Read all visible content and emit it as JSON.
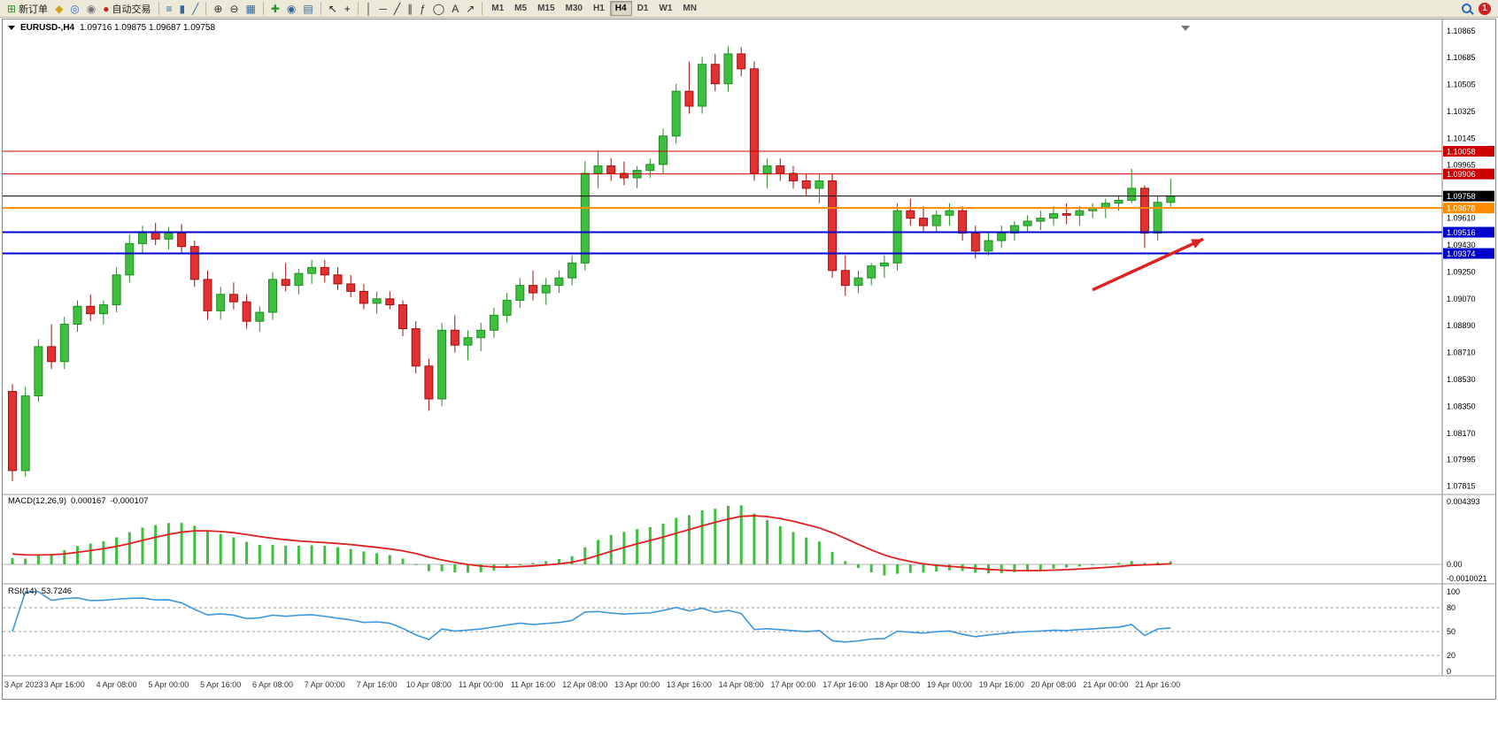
{
  "toolbar": {
    "notification_count": "1",
    "timeframes": [
      "M1",
      "M5",
      "M15",
      "M30",
      "H1",
      "H4",
      "D1",
      "W1",
      "MN"
    ],
    "active_timeframe": "H4",
    "groups": [
      {
        "name": "trade",
        "items": [
          {
            "icon": "new-order-icon",
            "glyph": "⊞",
            "color": "#2a8f2a",
            "label": "新订单"
          },
          {
            "icon": "market-watch-icon",
            "glyph": "◆",
            "color": "#d4a017"
          },
          {
            "icon": "navigator-icon",
            "glyph": "◎",
            "color": "#3366cc"
          },
          {
            "icon": "script-icon",
            "glyph": "◉",
            "color": "#777777"
          },
          {
            "icon": "autotrade-icon",
            "glyph": "●",
            "color": "#cc2222",
            "label": "自动交易"
          }
        ]
      },
      {
        "name": "chart-type",
        "items": [
          {
            "icon": "bar-chart-icon",
            "glyph": "≡",
            "color": "#336699"
          },
          {
            "icon": "candlestick-chart-icon",
            "glyph": "▮",
            "color": "#336699"
          },
          {
            "icon": "line-chart-icon",
            "glyph": "╱",
            "color": "#336699"
          }
        ]
      },
      {
        "name": "zoom",
        "items": [
          {
            "icon": "zoom-in-icon",
            "glyph": "⊕",
            "color": "#333333"
          },
          {
            "icon": "zoom-out-icon",
            "glyph": "⊖",
            "color": "#333333"
          },
          {
            "icon": "tile-windows-icon",
            "glyph": "▦",
            "color": "#336699"
          }
        ]
      },
      {
        "name": "indicators",
        "items": [
          {
            "icon": "indicators-icon",
            "glyph": "✚",
            "color": "#2a8f2a"
          },
          {
            "icon": "period-icon",
            "glyph": "◉",
            "color": "#336699"
          },
          {
            "icon": "template-icon",
            "glyph": "▤",
            "color": "#336699"
          }
        ]
      },
      {
        "name": "cursor",
        "items": [
          {
            "icon": "cursor-icon",
            "glyph": "↖",
            "color": "#222222"
          },
          {
            "icon": "crosshair-icon",
            "glyph": "+",
            "color": "#222222"
          }
        ]
      },
      {
        "name": "objects",
        "items": [
          {
            "icon": "vertical-line-icon",
            "glyph": "│",
            "color": "#333333"
          },
          {
            "icon": "horizontal-line-icon",
            "glyph": "─",
            "color": "#333333"
          },
          {
            "icon": "trendline-icon",
            "glyph": "╱",
            "color": "#333333"
          },
          {
            "icon": "channel-icon",
            "glyph": "∥",
            "color": "#333333"
          },
          {
            "icon": "fibonacci-icon",
            "glyph": "ƒ",
            "color": "#333333"
          },
          {
            "icon": "shapes-icon",
            "glyph": "◯",
            "color": "#333333"
          },
          {
            "icon": "text-icon",
            "glyph": "A",
            "color": "#333333"
          },
          {
            "icon": "arrows-icon",
            "glyph": "↗",
            "color": "#333333"
          }
        ]
      }
    ]
  },
  "chart_data": {
    "type": "candlestick",
    "symbol": "EURUSD",
    "period": "H4",
    "title": "EURUSD-,H4",
    "ohlc_text": "1.09716 1.09875 1.09687 1.09758",
    "colors": {
      "bull": "#3fbf3f",
      "bull_border": "#1f8f1f",
      "bear": "#e33030",
      "bear_border": "#a01010",
      "macd_hist": "#3fbf3f",
      "macd_signal": "#e02020",
      "rsi_line": "#3a96dd"
    },
    "price_axis_labels": [
      "1.10865",
      "1.10685",
      "1.10505",
      "1.10325",
      "1.10145",
      "1.09965",
      "1.09610",
      "1.09430",
      "1.09250",
      "1.09070",
      "1.08890",
      "1.08710",
      "1.08530",
      "1.08350",
      "1.08170",
      "1.07995",
      "1.07815"
    ],
    "levels": [
      {
        "price": 1.10058,
        "label": "1.10058",
        "color": "#cc0000",
        "width": 1
      },
      {
        "price": 1.09906,
        "label": "1.09906",
        "color": "#cc0000",
        "width": 1
      },
      {
        "price": 1.09758,
        "label": "1.09758",
        "color": "#000000",
        "width": 1
      },
      {
        "price": 1.09678,
        "label": "1.09678",
        "color": "#ff8c00",
        "width": 2
      },
      {
        "price": 1.09516,
        "label": "1.09516",
        "color": "#0000cc",
        "width": 2
      },
      {
        "price": 1.09374,
        "label": "1.09374",
        "color": "#0000cc",
        "width": 2
      }
    ],
    "arrow": {
      "from_bar": 83,
      "from_price": 1.0913,
      "to_bar": 91.5,
      "to_price": 1.0947,
      "color": "#dd2222"
    },
    "time_axis": [
      {
        "bar": 0,
        "label": "3 Apr 2023"
      },
      {
        "bar": 4,
        "label": "3 Apr 16:00"
      },
      {
        "bar": 8,
        "label": "4 Apr 08:00"
      },
      {
        "bar": 12,
        "label": "5 Apr 00:00"
      },
      {
        "bar": 16,
        "label": "5 Apr 16:00"
      },
      {
        "bar": 20,
        "label": "6 Apr 08:00"
      },
      {
        "bar": 24,
        "label": "7 Apr 00:00"
      },
      {
        "bar": 28,
        "label": "7 Apr 16:00"
      },
      {
        "bar": 32,
        "label": "10 Apr 08:00"
      },
      {
        "bar": 36,
        "label": "11 Apr 00:00"
      },
      {
        "bar": 40,
        "label": "11 Apr 16:00"
      },
      {
        "bar": 44,
        "label": "12 Apr 08:00"
      },
      {
        "bar": 48,
        "label": "13 Apr 00:00"
      },
      {
        "bar": 52,
        "label": "13 Apr 16:00"
      },
      {
        "bar": 56,
        "label": "14 Apr 08:00"
      },
      {
        "bar": 60,
        "label": "17 Apr 00:00"
      },
      {
        "bar": 64,
        "label": "17 Apr 16:00"
      },
      {
        "bar": 68,
        "label": "18 Apr 08:00"
      },
      {
        "bar": 72,
        "label": "19 Apr 00:00"
      },
      {
        "bar": 76,
        "label": "19 Apr 16:00"
      },
      {
        "bar": 80,
        "label": "20 Apr 08:00"
      },
      {
        "bar": 84,
        "label": "21 Apr 00:00"
      },
      {
        "bar": 88,
        "label": "21 Apr 16:00"
      }
    ],
    "candles": [
      [
        1.0845,
        1.085,
        1.0785,
        1.0792
      ],
      [
        1.0792,
        1.0848,
        1.0788,
        1.0842
      ],
      [
        1.0842,
        1.088,
        1.0838,
        1.0875
      ],
      [
        1.0875,
        1.089,
        1.086,
        1.0865
      ],
      [
        1.0865,
        1.0895,
        1.086,
        1.089
      ],
      [
        1.089,
        1.0906,
        1.0885,
        1.0902
      ],
      [
        1.0902,
        1.091,
        1.0892,
        1.0897
      ],
      [
        1.0897,
        1.0906,
        1.089,
        1.0903
      ],
      [
        1.0903,
        1.0928,
        1.0898,
        1.0923
      ],
      [
        1.0923,
        1.095,
        1.0918,
        1.0944
      ],
      [
        1.0944,
        1.0956,
        1.0938,
        1.0952
      ],
      [
        1.0952,
        1.0958,
        1.0943,
        1.0947
      ],
      [
        1.0947,
        1.0955,
        1.094,
        1.0951
      ],
      [
        1.0951,
        1.0957,
        1.0938,
        1.0942
      ],
      [
        1.0942,
        1.0946,
        1.0915,
        1.092
      ],
      [
        1.092,
        1.0926,
        1.0893,
        1.0899
      ],
      [
        1.0899,
        1.0915,
        1.0893,
        1.091
      ],
      [
        1.091,
        1.0918,
        1.09,
        1.0905
      ],
      [
        1.0905,
        1.091,
        1.0887,
        1.0892
      ],
      [
        1.0892,
        1.0902,
        1.0885,
        1.0898
      ],
      [
        1.0898,
        1.0925,
        1.0893,
        1.092
      ],
      [
        1.092,
        1.0931,
        1.0912,
        1.0916
      ],
      [
        1.0916,
        1.0927,
        1.091,
        1.0924
      ],
      [
        1.0924,
        1.0933,
        1.0917,
        1.0928
      ],
      [
        1.0928,
        1.0933,
        1.0918,
        1.0923
      ],
      [
        1.0923,
        1.0928,
        1.0913,
        1.0917
      ],
      [
        1.0917,
        1.0923,
        1.0908,
        1.0912
      ],
      [
        1.0912,
        1.0917,
        1.09,
        1.0904
      ],
      [
        1.0904,
        1.0912,
        1.0897,
        1.0907
      ],
      [
        1.0907,
        1.0912,
        1.09,
        1.0903
      ],
      [
        1.0903,
        1.0906,
        1.0882,
        1.0887
      ],
      [
        1.0887,
        1.0892,
        1.0857,
        1.0862
      ],
      [
        1.0862,
        1.0867,
        1.0832,
        1.084
      ],
      [
        1.084,
        1.0891,
        1.0835,
        1.0886
      ],
      [
        1.0886,
        1.0896,
        1.0871,
        1.0876
      ],
      [
        1.0876,
        1.0886,
        1.0866,
        1.0881
      ],
      [
        1.0881,
        1.0891,
        1.0872,
        1.0886
      ],
      [
        1.0886,
        1.0901,
        1.0881,
        1.0896
      ],
      [
        1.0896,
        1.0911,
        1.0891,
        1.0906
      ],
      [
        1.0906,
        1.0921,
        1.0901,
        1.0916
      ],
      [
        1.0916,
        1.0926,
        1.0906,
        1.0911
      ],
      [
        1.0911,
        1.0921,
        1.0903,
        1.0916
      ],
      [
        1.0916,
        1.0926,
        1.0911,
        1.0921
      ],
      [
        1.0921,
        1.0936,
        1.0916,
        1.0931
      ],
      [
        1.0931,
        1.0999,
        1.0926,
        1.0991
      ],
      [
        1.0991,
        1.1006,
        1.0981,
        1.0996
      ],
      [
        1.0996,
        1.1001,
        1.0986,
        1.0991
      ],
      [
        1.0991,
        1.0999,
        1.0983,
        1.0988
      ],
      [
        1.0988,
        1.0996,
        1.0981,
        1.0993
      ],
      [
        1.0993,
        1.1001,
        1.0988,
        1.0997
      ],
      [
        1.0997,
        1.1021,
        1.0991,
        1.1016
      ],
      [
        1.1016,
        1.1051,
        1.1011,
        1.1046
      ],
      [
        1.1046,
        1.1066,
        1.1031,
        1.1036
      ],
      [
        1.1036,
        1.1069,
        1.1031,
        1.1064
      ],
      [
        1.1064,
        1.1071,
        1.1046,
        1.1051
      ],
      [
        1.1051,
        1.1076,
        1.1046,
        1.1071
      ],
      [
        1.1071,
        1.10755,
        1.1056,
        1.1061
      ],
      [
        1.1061,
        1.1066,
        1.0986,
        1.0991
      ],
      [
        1.0991,
        1.1001,
        1.0981,
        1.0996
      ],
      [
        1.0996,
        1.1001,
        1.0986,
        1.0991
      ],
      [
        1.0991,
        1.0996,
        1.0981,
        1.0986
      ],
      [
        1.0986,
        1.0991,
        1.0976,
        1.0981
      ],
      [
        1.0981,
        1.0991,
        1.0971,
        1.0986
      ],
      [
        1.0986,
        1.0991,
        1.0921,
        1.0926
      ],
      [
        1.0926,
        1.0936,
        1.0909,
        1.0916
      ],
      [
        1.0916,
        1.0926,
        1.0911,
        1.0921
      ],
      [
        1.0921,
        1.0931,
        1.0916,
        1.0929
      ],
      [
        1.0929,
        1.0936,
        1.0921,
        1.0931
      ],
      [
        1.0931,
        1.0971,
        1.0926,
        1.0966
      ],
      [
        1.0966,
        1.0974,
        1.0956,
        1.0961
      ],
      [
        1.0961,
        1.0969,
        1.0951,
        1.0956
      ],
      [
        1.0956,
        1.0966,
        1.0951,
        1.0963
      ],
      [
        1.0963,
        1.0971,
        1.0956,
        1.0966
      ],
      [
        1.0966,
        1.0969,
        1.0946,
        1.0951
      ],
      [
        1.0951,
        1.0956,
        1.0934,
        1.0939
      ],
      [
        1.0939,
        1.0951,
        1.0936,
        1.0946
      ],
      [
        1.0946,
        1.0956,
        1.0941,
        1.0951
      ],
      [
        1.0951,
        1.0959,
        1.0946,
        1.0956
      ],
      [
        1.0956,
        1.0963,
        1.0951,
        1.0959
      ],
      [
        1.0959,
        1.0966,
        1.0953,
        1.0961
      ],
      [
        1.0961,
        1.0969,
        1.0956,
        1.0964
      ],
      [
        1.0964,
        1.0971,
        1.0957,
        1.0963
      ],
      [
        1.0963,
        1.0969,
        1.0956,
        1.0966
      ],
      [
        1.0966,
        1.0971,
        1.0961,
        1.0968
      ],
      [
        1.0968,
        1.0974,
        1.0961,
        1.0971
      ],
      [
        1.0971,
        1.0976,
        1.0966,
        1.0973
      ],
      [
        1.0973,
        1.0994,
        1.0971,
        1.0981
      ],
      [
        1.0981,
        1.0983,
        1.0941,
        1.0951
      ],
      [
        1.0951,
        1.0976,
        1.0946,
        1.09716
      ],
      [
        1.09716,
        1.09875,
        1.09687,
        1.09758
      ]
    ],
    "macd": {
      "label": "MACD(12,26,9)",
      "value_macd": "0.000167",
      "value_signal": "-0.000107",
      "params": {
        "fast": 12,
        "slow": 26,
        "signal": 9
      },
      "axis_labels": [
        {
          "value": 0.004393,
          "label": "0.004393"
        },
        {
          "value": 0,
          "label": "0.00"
        },
        {
          "value": -0.0010021,
          "label": "-0.0010021"
        }
      ]
    },
    "rsi": {
      "label": "RSI(14)",
      "value": "53.7246",
      "period": 14,
      "levels": [
        80,
        50,
        20
      ],
      "axis_labels": [
        {
          "value": 100,
          "label": "100"
        },
        {
          "value": 80,
          "label": "80"
        },
        {
          "value": 50,
          "label": "50"
        },
        {
          "value": 20,
          "label": "20"
        },
        {
          "value": 0,
          "label": "0"
        }
      ]
    }
  }
}
